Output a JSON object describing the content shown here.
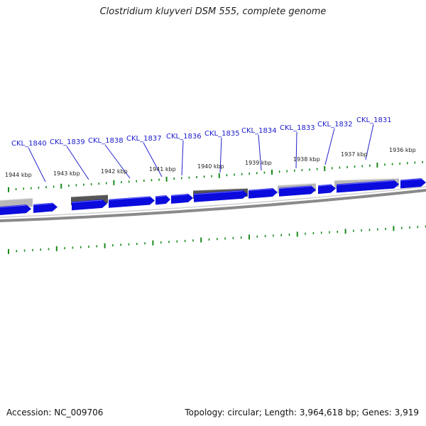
{
  "title": "Clostridium kluyveri DSM 555, complete genome",
  "footer": {
    "accession": "Accession: NC_009706",
    "summary": "Topology: circular; Length: 3,964,618 bp; Genes: 3,919"
  },
  "colors": {
    "cds_forward": "#0b0bdd",
    "gene_label": "#1a1acc",
    "leader_line": "#2222cc",
    "tick": "#1a8a1a",
    "backbone": "#8a8a8a",
    "feature_dark": "#555555",
    "feature_light": "#b8b8b8"
  },
  "gene_labels": [
    "CKL_1840",
    "CKL_1839",
    "CKL_1838",
    "CKL_1837",
    "CKL_1836",
    "CKL_1835",
    "CKL_1834",
    "CKL_1833",
    "CKL_1832",
    "CKL_1831"
  ],
  "kbp_labels": [
    "1944 kbp",
    "1943 kbp",
    "1942 kbp",
    "1941 kbp",
    "1940 kbp",
    "1939 kbp",
    "1938 kbp",
    "1937 kbp",
    "1936 kbp"
  ],
  "features": [
    {
      "strand": "forward",
      "kind": "CDS"
    },
    {
      "strand": "forward",
      "kind": "CDS"
    },
    {
      "strand": "forward",
      "kind": "CDS"
    },
    {
      "strand": "forward",
      "kind": "CDS"
    },
    {
      "strand": "forward",
      "kind": "CDS"
    },
    {
      "strand": "forward",
      "kind": "CDS"
    },
    {
      "strand": "forward",
      "kind": "CDS"
    },
    {
      "strand": "forward",
      "kind": "CDS"
    },
    {
      "strand": "forward",
      "kind": "CDS"
    },
    {
      "strand": "forward",
      "kind": "CDS"
    },
    {
      "strand": "forward",
      "kind": "CDS"
    },
    {
      "strand": "forward",
      "kind": "CDS"
    },
    {
      "strand": "forward",
      "kind": "CDS"
    }
  ]
}
